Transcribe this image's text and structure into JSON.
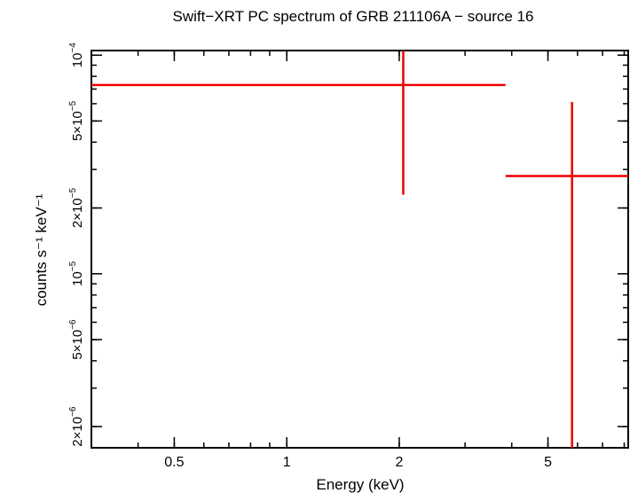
{
  "chart_data": {
    "type": "scatter",
    "title": "Swift−XRT PC spectrum of GRB 211106A − source 16",
    "xlabel": "Energy (keV)",
    "ylabel": "counts s⁻¹ keV⁻¹",
    "x_scale": "log",
    "y_scale": "log",
    "xlim": [
      0.3,
      8.2
    ],
    "ylim": [
      1.6e-06,
      0.000105
    ],
    "x_ticks": [
      {
        "value": 0.5,
        "label": "0.5"
      },
      {
        "value": 1,
        "label": "1"
      },
      {
        "value": 2,
        "label": "2"
      },
      {
        "value": 5,
        "label": "5"
      }
    ],
    "y_ticks": [
      {
        "value": 0.0001,
        "mantissa": "",
        "exp": "−4"
      },
      {
        "value": 5e-05,
        "mantissa": "5×",
        "exp": "−5"
      },
      {
        "value": 2e-05,
        "mantissa": "2×",
        "exp": "−5"
      },
      {
        "value": 1e-05,
        "mantissa": "",
        "exp": "−5"
      },
      {
        "value": 5e-06,
        "mantissa": "5×",
        "exp": "−6"
      },
      {
        "value": 2e-06,
        "mantissa": "2×",
        "exp": "−6"
      }
    ],
    "series": [
      {
        "color": "#ee0000",
        "points": [
          {
            "x": 2.05,
            "xlo": 0.3,
            "xhi": 3.85,
            "y": 7.3e-05,
            "ylo": 2.3e-05,
            "yhi": 0.000105
          },
          {
            "x": 5.8,
            "xlo": 3.85,
            "xhi": 8.2,
            "y": 2.8e-05,
            "ylo": 1.6e-06,
            "yhi": 6.1e-05
          }
        ]
      }
    ],
    "grid": false
  }
}
